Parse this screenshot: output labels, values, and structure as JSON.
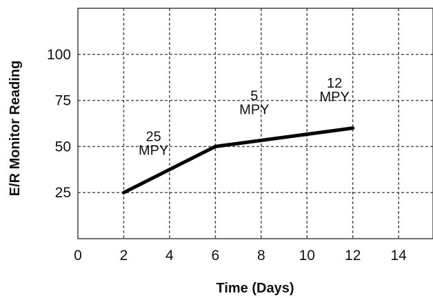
{
  "chart_data": {
    "type": "line",
    "xlabel": "Time (Days)",
    "ylabel": "E/R Monitor Reading",
    "x_ticks": [
      0,
      2,
      4,
      6,
      8,
      10,
      12,
      14
    ],
    "y_ticks": [
      25,
      50,
      75,
      100
    ],
    "xlim": [
      0,
      15.5
    ],
    "ylim": [
      0,
      125
    ],
    "grid": true,
    "series": [
      {
        "points": [
          {
            "x": 2,
            "y": 25
          },
          {
            "x": 6,
            "y": 50
          },
          {
            "x": 12,
            "y": 60
          }
        ]
      }
    ],
    "annotations": [
      {
        "lines": [
          "25",
          "MPY"
        ],
        "x": 3.3,
        "y": 53
      },
      {
        "lines": [
          "5",
          "MPY"
        ],
        "x": 7.7,
        "y": 75
      },
      {
        "lines": [
          "12",
          "MPY"
        ],
        "x": 11.2,
        "y": 82
      }
    ]
  }
}
